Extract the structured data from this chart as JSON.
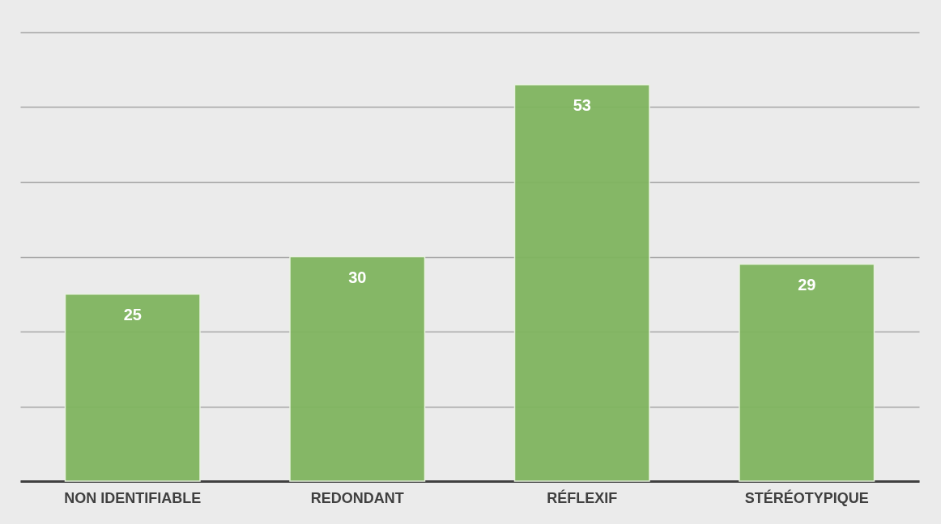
{
  "chart_data": {
    "type": "bar",
    "categories": [
      "NON IDENTIFIABLE",
      "REDONDANT",
      "RÉFLEXIF",
      "STÉRÉOTYPIQUE"
    ],
    "values": [
      25,
      30,
      53,
      29
    ],
    "color": "#80b55f",
    "data_labels": true,
    "ylim": [
      0,
      60
    ],
    "yticks": [
      {
        "value": 0,
        "label": null
      },
      {
        "value": 10,
        "label": null
      },
      {
        "value": 20,
        "label": null
      },
      {
        "value": 30,
        "label": null
      },
      {
        "value": 40,
        "label": null
      },
      {
        "value": 50,
        "label": null
      },
      {
        "value": 60,
        "label": null
      }
    ],
    "grid": "y",
    "tick_labels": "x"
  }
}
